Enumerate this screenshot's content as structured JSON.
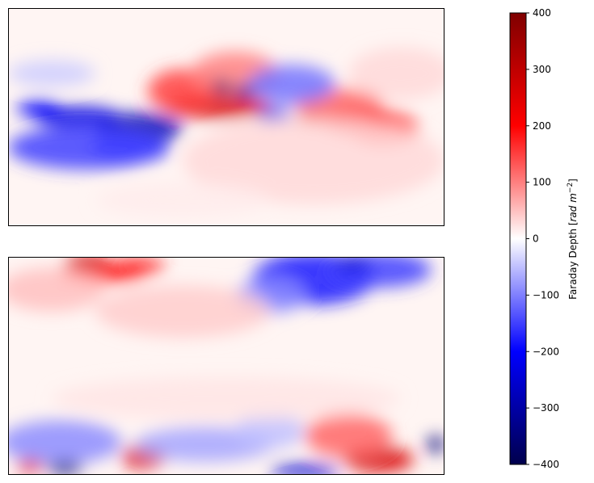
{
  "chart_data": [
    {
      "type": "heatmap",
      "title": "",
      "xlabel": "",
      "ylabel": "",
      "axes_ticks": false,
      "colormap": "seismic",
      "value_range": [
        -400,
        400
      ],
      "features": [
        {
          "u": 0.48,
          "v": 0.45,
          "du": 0.12,
          "dv": 0.06,
          "value": 260
        },
        {
          "u": 0.4,
          "v": 0.38,
          "du": 0.08,
          "dv": 0.1,
          "value": 150
        },
        {
          "u": 0.52,
          "v": 0.3,
          "du": 0.1,
          "dv": 0.1,
          "value": 100
        },
        {
          "u": 0.72,
          "v": 0.51,
          "du": 0.06,
          "dv": 0.03,
          "value": 300
        },
        {
          "u": 0.8,
          "v": 0.52,
          "du": 0.08,
          "dv": 0.06,
          "value": 230
        },
        {
          "u": 0.86,
          "v": 0.55,
          "du": 0.08,
          "dv": 0.08,
          "value": 150
        },
        {
          "u": 0.76,
          "v": 0.45,
          "du": 0.1,
          "dv": 0.08,
          "value": 120
        },
        {
          "u": 0.3,
          "v": 0.55,
          "du": 0.1,
          "dv": 0.07,
          "value": -280
        },
        {
          "u": 0.16,
          "v": 0.5,
          "du": 0.1,
          "dv": 0.05,
          "value": -230
        },
        {
          "u": 0.07,
          "v": 0.46,
          "du": 0.05,
          "dv": 0.04,
          "value": -200
        },
        {
          "u": 0.18,
          "v": 0.64,
          "du": 0.18,
          "dv": 0.1,
          "value": -150
        },
        {
          "u": 0.28,
          "v": 0.64,
          "du": 0.09,
          "dv": 0.07,
          "value": -150
        },
        {
          "u": 0.65,
          "v": 0.35,
          "du": 0.1,
          "dv": 0.09,
          "value": -110
        },
        {
          "u": 0.61,
          "v": 0.49,
          "du": 0.04,
          "dv": 0.03,
          "value": -220
        },
        {
          "u": 0.49,
          "v": 0.36,
          "du": 0.02,
          "dv": 0.03,
          "value": -350
        },
        {
          "u": 0.54,
          "v": 0.38,
          "du": 0.02,
          "dv": 0.03,
          "value": -300
        },
        {
          "u": 0.1,
          "v": 0.3,
          "du": 0.1,
          "dv": 0.06,
          "value": -40
        },
        {
          "u": 0.7,
          "v": 0.7,
          "du": 0.3,
          "dv": 0.2,
          "value": 30
        },
        {
          "u": 0.9,
          "v": 0.3,
          "du": 0.12,
          "dv": 0.12,
          "value": 30
        },
        {
          "u": 0.4,
          "v": 0.88,
          "du": 0.2,
          "dv": 0.08,
          "value": 15
        }
      ]
    },
    {
      "type": "heatmap",
      "title": "",
      "xlabel": "",
      "ylabel": "",
      "axes_ticks": false,
      "colormap": "seismic",
      "value_range": [
        -400,
        400
      ],
      "features": [
        {
          "u": 0.7,
          "v": 0.1,
          "du": 0.14,
          "dv": 0.12,
          "value": -180
        },
        {
          "u": 0.85,
          "v": 0.06,
          "du": 0.12,
          "dv": 0.08,
          "value": -150
        },
        {
          "u": 0.6,
          "v": 0.18,
          "du": 0.08,
          "dv": 0.08,
          "value": -90
        },
        {
          "u": 0.79,
          "v": 0.03,
          "du": 0.04,
          "dv": 0.03,
          "value": -250
        },
        {
          "u": 0.22,
          "v": 0.07,
          "du": 0.1,
          "dv": 0.05,
          "value": 200
        },
        {
          "u": 0.3,
          "v": 0.04,
          "du": 0.06,
          "dv": 0.04,
          "value": 160
        },
        {
          "u": 0.18,
          "v": 0.02,
          "du": 0.05,
          "dv": 0.03,
          "value": 280
        },
        {
          "u": 0.1,
          "v": 0.15,
          "du": 0.12,
          "dv": 0.1,
          "value": 50
        },
        {
          "u": 0.4,
          "v": 0.25,
          "du": 0.2,
          "dv": 0.12,
          "value": 40
        },
        {
          "u": 0.85,
          "v": 0.93,
          "du": 0.08,
          "dv": 0.06,
          "value": 260
        },
        {
          "u": 0.78,
          "v": 0.82,
          "du": 0.1,
          "dv": 0.1,
          "value": 120
        },
        {
          "u": 0.31,
          "v": 0.92,
          "du": 0.05,
          "dv": 0.05,
          "value": 260
        },
        {
          "u": 0.12,
          "v": 0.85,
          "du": 0.14,
          "dv": 0.1,
          "value": -90
        },
        {
          "u": 0.45,
          "v": 0.86,
          "du": 0.16,
          "dv": 0.08,
          "value": -70
        },
        {
          "u": 0.6,
          "v": 0.8,
          "du": 0.08,
          "dv": 0.08,
          "value": -50
        },
        {
          "u": 0.13,
          "v": 0.97,
          "du": 0.04,
          "dv": 0.03,
          "value": -350
        },
        {
          "u": 0.68,
          "v": 0.98,
          "du": 0.08,
          "dv": 0.03,
          "value": -250
        },
        {
          "u": 0.98,
          "v": 0.86,
          "du": 0.02,
          "dv": 0.04,
          "value": -350
        },
        {
          "u": 0.05,
          "v": 0.96,
          "du": 0.03,
          "dv": 0.03,
          "value": 250
        },
        {
          "u": 0.5,
          "v": 0.65,
          "du": 0.4,
          "dv": 0.1,
          "value": 20
        }
      ]
    }
  ],
  "colorbar": {
    "label_text": "Faraday Depth [",
    "label_unit_base": "rad m",
    "label_unit_exponent": "−2",
    "label_close": "]",
    "range": [
      -400,
      400
    ],
    "ticks": [
      {
        "value": 400,
        "label": "400"
      },
      {
        "value": 300,
        "label": "300"
      },
      {
        "value": 200,
        "label": "200"
      },
      {
        "value": 100,
        "label": "100"
      },
      {
        "value": 0,
        "label": "0"
      },
      {
        "value": -100,
        "label": "−100"
      },
      {
        "value": -200,
        "label": "−200"
      },
      {
        "value": -300,
        "label": "−300"
      },
      {
        "value": -400,
        "label": "−400"
      }
    ]
  }
}
